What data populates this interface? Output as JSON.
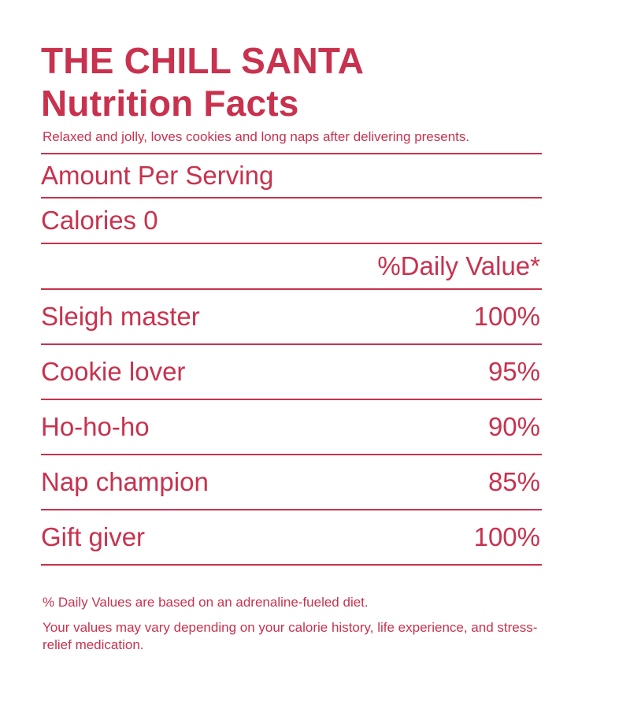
{
  "title_line1": "THE CHILL SANTA",
  "title_line2": "Nutrition Facts",
  "tagline": "Relaxed and jolly, loves cookies and long naps after delivering presents.",
  "amount_per_serving": "Amount Per Serving",
  "calories": "Calories 0",
  "daily_value_header": "%Daily Value*",
  "items": [
    {
      "name": "Sleigh master",
      "value": "100%"
    },
    {
      "name": "Cookie lover",
      "value": "95%"
    },
    {
      "name": "Ho-ho-ho",
      "value": "90%"
    },
    {
      "name": "Nap champion",
      "value": "85%"
    },
    {
      "name": "Gift giver",
      "value": "100%"
    }
  ],
  "footnote1": "% Daily Values are based on an adrenaline-fueled diet.",
  "footnote2": "Your values may vary depending on your calorie history, life experience, and stress-relief medication.",
  "colors": {
    "text": "#c8324e",
    "background": "#ffffff"
  }
}
